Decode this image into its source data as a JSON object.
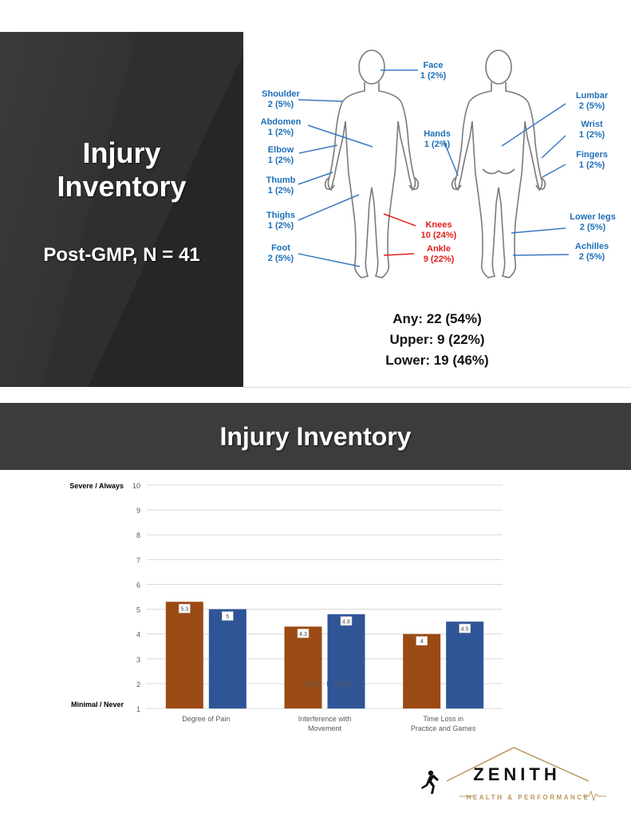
{
  "slide1": {
    "title": "Injury\nInventory",
    "subtitle": "Post-GMP, N = 41",
    "front_labels": [
      {
        "part": "Shoulder",
        "value": "2 (5%)"
      },
      {
        "part": "Abdomen",
        "value": "1 (2%)"
      },
      {
        "part": "Elbow",
        "value": "1 (2%)"
      },
      {
        "part": "Thumb",
        "value": "1 (2%)"
      },
      {
        "part": "Thighs",
        "value": "1 (2%)"
      },
      {
        "part": "Foot",
        "value": "2 (5%)"
      }
    ],
    "center_labels": [
      {
        "part": "Face",
        "value": "1 (2%)"
      },
      {
        "part": "Hands",
        "value": "1 (2%)"
      },
      {
        "part": "Knees",
        "value": "10 (24%)",
        "highlight": true
      },
      {
        "part": "Ankle",
        "value": "9 (22%)",
        "highlight": true
      }
    ],
    "back_labels": [
      {
        "part": "Lumbar",
        "value": "2 (5%)"
      },
      {
        "part": "Wrist",
        "value": "1 (2%)"
      },
      {
        "part": "Fingers",
        "value": "1 (2%)"
      },
      {
        "part": "Lower legs",
        "value": "2 (5%)"
      },
      {
        "part": "Achilles",
        "value": "2 (5%)"
      }
    ],
    "totals": {
      "any": "Any: 22 (54%)",
      "upper": "Upper: 9 (22%)",
      "lower": "Lower: 19 (46%)"
    },
    "colors": {
      "label": "#1d6fb8",
      "highlight": "#e0201b"
    }
  },
  "slide2": {
    "header": "Injury Inventory"
  },
  "chart_data": {
    "type": "bar",
    "categories": [
      "Degree of Pain",
      "Interference with\nMovement",
      "Time Loss in\nPractice and Games"
    ],
    "series": [
      {
        "name": "PRE",
        "values": [
          5.3,
          4.3,
          4
        ],
        "color": "#9b4a14"
      },
      {
        "name": "POST",
        "values": [
          5,
          4.8,
          4.5
        ],
        "color": "#2f5597"
      }
    ],
    "ylim": [
      1,
      10
    ],
    "yticks": [
      1,
      2,
      3,
      4,
      5,
      6,
      7,
      8,
      9,
      10
    ],
    "ylabel_top": "Severe / Always",
    "ylabel_bottom": "Minimal / Never",
    "grid": true,
    "legend": "bottom-center",
    "data_labels": true
  },
  "logo": {
    "name": "ZENITH",
    "tagline": "HEALTH & PERFORMANCE",
    "accent": "#b8965a"
  }
}
